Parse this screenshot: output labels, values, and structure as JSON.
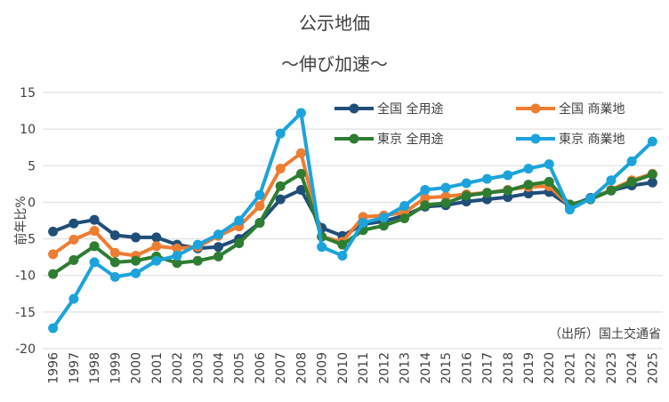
{
  "chart_data": {
    "type": "line",
    "title": "公示地価",
    "subtitle": "～伸び加速～",
    "ylabel": "前年比%",
    "xlabel": "",
    "ylim": [
      -20,
      15
    ],
    "yticks": [
      15,
      10,
      5,
      0,
      -5,
      -10,
      -15,
      -20
    ],
    "grid": true,
    "legend_position": "top-right",
    "source": "（出所）国土交通省",
    "categories": [
      "1996",
      "1997",
      "1998",
      "1999",
      "2000",
      "2001",
      "2002",
      "2003",
      "2004",
      "2005",
      "2006",
      "2007",
      "2008",
      "2009",
      "2010",
      "2011",
      "2012",
      "2013",
      "2014",
      "2015",
      "2016",
      "2017",
      "2018",
      "2019",
      "2020",
      "2021",
      "2022",
      "2023",
      "2024",
      "2025"
    ],
    "series": [
      {
        "name": "全国 全用途",
        "color": "#1f4e79",
        "values": [
          -4.0,
          -2.9,
          -2.4,
          -4.5,
          -4.8,
          -4.8,
          -5.8,
          -6.3,
          -6.1,
          -5.0,
          -2.8,
          0.4,
          1.7,
          -3.5,
          -4.6,
          -3.0,
          -2.6,
          -1.8,
          -0.6,
          -0.4,
          0.1,
          0.4,
          0.7,
          1.2,
          1.4,
          -0.5,
          0.6,
          1.6,
          2.3,
          2.7
        ]
      },
      {
        "name": "全国 商業地",
        "color": "#ed7d31",
        "values": [
          -7.1,
          -5.1,
          -3.9,
          -6.9,
          -7.3,
          -6.0,
          -6.3,
          -6.1,
          -4.6,
          -3.3,
          -0.5,
          4.6,
          6.7,
          -4.7,
          -5.4,
          -2.0,
          -1.8,
          -1.4,
          0.6,
          0.8,
          1.1,
          1.3,
          1.7,
          2.1,
          2.2,
          -0.5,
          0.4,
          1.7,
          3.0,
          3.9
        ]
      },
      {
        "name": "東京 全用途",
        "color": "#2e7d32",
        "values": [
          -9.8,
          -7.9,
          -6.0,
          -8.2,
          -8.0,
          -7.4,
          -8.3,
          -8.0,
          -7.4,
          -5.6,
          -2.8,
          2.2,
          3.9,
          -4.7,
          -5.8,
          -3.8,
          -3.2,
          -2.2,
          -0.4,
          -0.1,
          0.9,
          1.3,
          1.6,
          2.4,
          2.8,
          -0.3,
          0.4,
          1.6,
          2.8,
          3.8
        ]
      },
      {
        "name": "東京 商業地",
        "color": "#1ca3dc",
        "values": [
          -17.2,
          -13.2,
          -8.2,
          -10.2,
          -9.7,
          -8.0,
          -7.3,
          -5.8,
          -4.4,
          -2.5,
          1.0,
          9.4,
          12.2,
          -6.1,
          -7.3,
          -2.8,
          -2.1,
          -0.5,
          1.7,
          2.0,
          2.6,
          3.2,
          3.7,
          4.6,
          5.2,
          -1.0,
          0.5,
          3.0,
          5.6,
          8.3
        ]
      }
    ]
  }
}
